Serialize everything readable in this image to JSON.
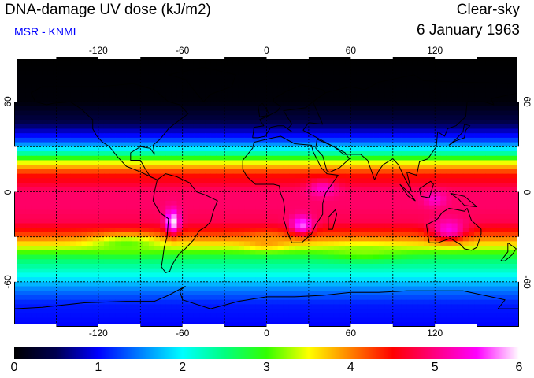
{
  "header": {
    "title": "DNA-damage UV dose (kJ/m2)",
    "source": "MSR - KNMI",
    "condition": "Clear-sky",
    "date": "6 January 1963"
  },
  "colors": {
    "source_text": "#0000ff",
    "frame": "#000000",
    "gridline": "#000000",
    "coastline": "#000000"
  },
  "map": {
    "projection": "equirectangular",
    "lon_range": [
      -180,
      180
    ],
    "lat_range": [
      -90,
      90
    ],
    "lon_ticks": [
      -120,
      -60,
      0,
      60,
      120
    ],
    "lat_ticks": [
      60,
      0,
      -60
    ],
    "lon_tick_labels": [
      "-120",
      "-60",
      "0",
      "60",
      "120"
    ],
    "lat_tick_labels": [
      "60",
      "0",
      "-60"
    ],
    "grid": true,
    "grid_style": "dotted",
    "lon_grid_step": 30,
    "lat_grid_step": 30
  },
  "colorbar": {
    "min": 0,
    "max": 6,
    "tick_labels": [
      "0",
      "1",
      "2",
      "3",
      "4",
      "5",
      "6"
    ],
    "stops": [
      {
        "v": 0.0,
        "c": "#000000"
      },
      {
        "v": 0.5,
        "c": "#000050"
      },
      {
        "v": 1.0,
        "c": "#0000ff"
      },
      {
        "v": 1.5,
        "c": "#0080ff"
      },
      {
        "v": 2.0,
        "c": "#00ffff"
      },
      {
        "v": 2.5,
        "c": "#00ff80"
      },
      {
        "v": 3.0,
        "c": "#33ff00"
      },
      {
        "v": 3.5,
        "c": "#ffff00"
      },
      {
        "v": 4.0,
        "c": "#ff8000"
      },
      {
        "v": 4.5,
        "c": "#ff0000"
      },
      {
        "v": 5.0,
        "c": "#ff0080"
      },
      {
        "v": 5.5,
        "c": "#ff00ff"
      },
      {
        "v": 6.0,
        "c": "#ffffff"
      }
    ]
  },
  "dose_field": {
    "lat_profile": [
      {
        "lat": 90,
        "v": 0.0
      },
      {
        "lat": 60,
        "v": 0.05
      },
      {
        "lat": 45,
        "v": 0.5
      },
      {
        "lat": 35,
        "v": 1.2
      },
      {
        "lat": 27,
        "v": 2.1
      },
      {
        "lat": 20,
        "v": 3.4
      },
      {
        "lat": 12,
        "v": 4.4
      },
      {
        "lat": 0,
        "v": 4.9
      },
      {
        "lat": -10,
        "v": 4.9
      },
      {
        "lat": -20,
        "v": 4.8
      },
      {
        "lat": -28,
        "v": 4.3
      },
      {
        "lat": -35,
        "v": 3.6
      },
      {
        "lat": -45,
        "v": 2.6
      },
      {
        "lat": -55,
        "v": 2.1
      },
      {
        "lat": -65,
        "v": 1.5
      },
      {
        "lat": -75,
        "v": 1.1
      },
      {
        "lat": -90,
        "v": 1.0
      }
    ],
    "hotspots": [
      {
        "lon": -67,
        "lat": -20,
        "v": 6.0,
        "rlon": 5,
        "rlat": 8
      },
      {
        "lon": 25,
        "lat": -22,
        "v": 5.7,
        "rlon": 8,
        "rlat": 6
      },
      {
        "lon": 130,
        "lat": -25,
        "v": 5.4,
        "rlon": 12,
        "rlat": 7
      },
      {
        "lon": 120,
        "lat": -5,
        "v": 5.3,
        "rlon": 8,
        "rlat": 5
      },
      {
        "lon": 40,
        "lat": 2,
        "v": 5.3,
        "rlon": 10,
        "rlat": 5
      }
    ],
    "coolspots": [
      {
        "lon": 0,
        "lat": -33,
        "v": 3.9,
        "rlon": 15,
        "rlat": 5
      },
      {
        "lon": -100,
        "lat": -35,
        "v": 3.1,
        "rlon": 25,
        "rlat": 6
      },
      {
        "lon": 70,
        "lat": -40,
        "v": 3.2,
        "rlon": 25,
        "rlat": 5
      }
    ]
  },
  "coastlines": [
    {
      "name": "north-america",
      "pts": [
        [
          -168,
          66
        ],
        [
          -160,
          70
        ],
        [
          -140,
          70
        ],
        [
          -120,
          70
        ],
        [
          -95,
          72
        ],
        [
          -80,
          68
        ],
        [
          -70,
          60
        ],
        [
          -62,
          58
        ],
        [
          -56,
          52
        ],
        [
          -66,
          45
        ],
        [
          -70,
          42
        ],
        [
          -76,
          35
        ],
        [
          -81,
          31
        ],
        [
          -80,
          25
        ],
        [
          -83,
          29
        ],
        [
          -90,
          30
        ],
        [
          -97,
          26
        ],
        [
          -97,
          21
        ],
        [
          -90,
          21
        ],
        [
          -87,
          16
        ],
        [
          -83,
          10
        ],
        [
          -78,
          8
        ],
        [
          -85,
          11
        ],
        [
          -92,
          14
        ],
        [
          -100,
          17
        ],
        [
          -106,
          23
        ],
        [
          -112,
          30
        ],
        [
          -117,
          33
        ],
        [
          -121,
          37
        ],
        [
          -124,
          42
        ],
        [
          -124,
          48
        ],
        [
          -132,
          55
        ],
        [
          -140,
          60
        ],
        [
          -152,
          59
        ],
        [
          -157,
          58
        ],
        [
          -165,
          60
        ],
        [
          -168,
          66
        ]
      ]
    },
    {
      "name": "south-america",
      "pts": [
        [
          -78,
          8
        ],
        [
          -72,
          12
        ],
        [
          -64,
          10
        ],
        [
          -55,
          6
        ],
        [
          -50,
          0
        ],
        [
          -44,
          -2
        ],
        [
          -35,
          -6
        ],
        [
          -38,
          -13
        ],
        [
          -40,
          -20
        ],
        [
          -43,
          -23
        ],
        [
          -48,
          -26
        ],
        [
          -52,
          -32
        ],
        [
          -58,
          -38
        ],
        [
          -62,
          -41
        ],
        [
          -65,
          -45
        ],
        [
          -68,
          -50
        ],
        [
          -69,
          -53
        ],
        [
          -72,
          -54
        ],
        [
          -75,
          -50
        ],
        [
          -74,
          -44
        ],
        [
          -73,
          -37
        ],
        [
          -71,
          -30
        ],
        [
          -70,
          -18
        ],
        [
          -76,
          -14
        ],
        [
          -81,
          -6
        ],
        [
          -80,
          0
        ],
        [
          -78,
          8
        ]
      ]
    },
    {
      "name": "greenland",
      "pts": [
        [
          -45,
          60
        ],
        [
          -40,
          65
        ],
        [
          -25,
          70
        ],
        [
          -22,
          78
        ],
        [
          -45,
          83
        ],
        [
          -70,
          78
        ],
        [
          -58,
          75
        ],
        [
          -52,
          68
        ],
        [
          -45,
          60
        ]
      ]
    },
    {
      "name": "europe",
      "pts": [
        [
          -10,
          36
        ],
        [
          -9,
          43
        ],
        [
          -2,
          44
        ],
        [
          -5,
          48
        ],
        [
          2,
          51
        ],
        [
          8,
          54
        ],
        [
          10,
          57
        ],
        [
          5,
          60
        ],
        [
          5,
          62
        ],
        [
          14,
          67
        ],
        [
          25,
          71
        ],
        [
          40,
          68
        ],
        [
          42,
          66
        ],
        [
          33,
          60
        ],
        [
          28,
          56
        ],
        [
          20,
          55
        ],
        [
          12,
          54
        ],
        [
          18,
          45
        ],
        [
          15,
          42
        ],
        [
          18,
          40
        ],
        [
          12,
          44
        ],
        [
          8,
          44
        ],
        [
          3,
          43
        ],
        [
          -1,
          37
        ],
        [
          -6,
          36
        ],
        [
          -10,
          36
        ]
      ]
    },
    {
      "name": "africa",
      "pts": [
        [
          -17,
          21
        ],
        [
          -17,
          15
        ],
        [
          -14,
          10
        ],
        [
          -8,
          5
        ],
        [
          -2,
          5
        ],
        [
          5,
          5
        ],
        [
          9,
          4
        ],
        [
          10,
          -1
        ],
        [
          12,
          -6
        ],
        [
          13,
          -12
        ],
        [
          12,
          -18
        ],
        [
          15,
          -27
        ],
        [
          18,
          -34
        ],
        [
          25,
          -34
        ],
        [
          32,
          -28
        ],
        [
          35,
          -22
        ],
        [
          40,
          -15
        ],
        [
          40,
          -8
        ],
        [
          42,
          -1
        ],
        [
          51,
          11
        ],
        [
          43,
          12
        ],
        [
          39,
          16
        ],
        [
          33,
          27
        ],
        [
          32,
          31
        ],
        [
          20,
          32
        ],
        [
          10,
          37
        ],
        [
          0,
          35
        ],
        [
          -9,
          33
        ],
        [
          -10,
          29
        ],
        [
          -17,
          21
        ]
      ]
    },
    {
      "name": "arabia",
      "pts": [
        [
          35,
          29
        ],
        [
          40,
          24
        ],
        [
          43,
          14
        ],
        [
          45,
          13
        ],
        [
          52,
          16
        ],
        [
          59,
          22
        ],
        [
          56,
          26
        ],
        [
          50,
          29
        ],
        [
          48,
          30
        ],
        [
          36,
          35
        ],
        [
          35,
          29
        ]
      ]
    },
    {
      "name": "asia",
      "pts": [
        [
          26,
          41
        ],
        [
          36,
          36
        ],
        [
          48,
          30
        ],
        [
          55,
          25
        ],
        [
          62,
          25
        ],
        [
          67,
          25
        ],
        [
          72,
          21
        ],
        [
          77,
          8
        ],
        [
          80,
          14
        ],
        [
          83,
          18
        ],
        [
          90,
          22
        ],
        [
          94,
          18
        ],
        [
          98,
          10
        ],
        [
          103,
          1
        ],
        [
          100,
          13
        ],
        [
          107,
          11
        ],
        [
          109,
          20
        ],
        [
          115,
          22
        ],
        [
          121,
          30
        ],
        [
          122,
          40
        ],
        [
          127,
          37
        ],
        [
          129,
          42
        ],
        [
          135,
          44
        ],
        [
          142,
          50
        ],
        [
          143,
          60
        ],
        [
          155,
          60
        ],
        [
          162,
          58
        ],
        [
          160,
          62
        ],
        [
          180,
          66
        ],
        [
          180,
          72
        ],
        [
          140,
          73
        ],
        [
          112,
          74
        ],
        [
          105,
          78
        ],
        [
          80,
          73
        ],
        [
          70,
          68
        ],
        [
          60,
          70
        ],
        [
          42,
          66
        ],
        [
          33,
          60
        ],
        [
          40,
          45
        ],
        [
          30,
          46
        ],
        [
          26,
          41
        ]
      ]
    },
    {
      "name": "madagascar",
      "pts": [
        [
          44,
          -25
        ],
        [
          47,
          -25
        ],
        [
          50,
          -15
        ],
        [
          49,
          -12
        ],
        [
          44,
          -17
        ],
        [
          44,
          -25
        ]
      ]
    },
    {
      "name": "australia",
      "pts": [
        [
          114,
          -22
        ],
        [
          116,
          -34
        ],
        [
          122,
          -34
        ],
        [
          131,
          -31
        ],
        [
          138,
          -35
        ],
        [
          141,
          -38
        ],
        [
          146,
          -39
        ],
        [
          150,
          -37
        ],
        [
          153,
          -28
        ],
        [
          153,
          -25
        ],
        [
          146,
          -19
        ],
        [
          143,
          -11
        ],
        [
          141,
          -13
        ],
        [
          136,
          -12
        ],
        [
          130,
          -11
        ],
        [
          125,
          -14
        ],
        [
          122,
          -18
        ],
        [
          114,
          -22
        ]
      ]
    },
    {
      "name": "new-zealand",
      "pts": [
        [
          172,
          -34
        ],
        [
          178,
          -38
        ],
        [
          175,
          -42
        ],
        [
          170,
          -46
        ],
        [
          167,
          -46
        ],
        [
          172,
          -40
        ],
        [
          172,
          -34
        ]
      ]
    },
    {
      "name": "borneo",
      "pts": [
        [
          109,
          2
        ],
        [
          117,
          7
        ],
        [
          119,
          5
        ],
        [
          116,
          -4
        ],
        [
          110,
          -3
        ],
        [
          109,
          2
        ]
      ]
    },
    {
      "name": "sumatra",
      "pts": [
        [
          95,
          5
        ],
        [
          103,
          -2
        ],
        [
          106,
          -6
        ],
        [
          101,
          -3
        ],
        [
          95,
          5
        ]
      ]
    },
    {
      "name": "new-guinea",
      "pts": [
        [
          131,
          -1
        ],
        [
          141,
          -3
        ],
        [
          150,
          -10
        ],
        [
          141,
          -9
        ],
        [
          137,
          -5
        ],
        [
          131,
          -1
        ]
      ]
    },
    {
      "name": "japan",
      "pts": [
        [
          130,
          31
        ],
        [
          135,
          34
        ],
        [
          141,
          36
        ],
        [
          142,
          41
        ],
        [
          145,
          44
        ],
        [
          141,
          45
        ],
        [
          140,
          40
        ],
        [
          135,
          35
        ],
        [
          130,
          31
        ]
      ]
    },
    {
      "name": "uk",
      "pts": [
        [
          -5,
          50
        ],
        [
          2,
          51
        ],
        [
          0,
          55
        ],
        [
          -3,
          59
        ],
        [
          -6,
          57
        ],
        [
          -5,
          50
        ]
      ]
    },
    {
      "name": "antarctica",
      "pts": [
        [
          -180,
          -85
        ],
        [
          -180,
          -78
        ],
        [
          -160,
          -77
        ],
        [
          -150,
          -76
        ],
        [
          -130,
          -74
        ],
        [
          -100,
          -73
        ],
        [
          -80,
          -73
        ],
        [
          -70,
          -69
        ],
        [
          -58,
          -63
        ],
        [
          -62,
          -66
        ],
        [
          -60,
          -72
        ],
        [
          -40,
          -78
        ],
        [
          -20,
          -73
        ],
        [
          0,
          -70
        ],
        [
          20,
          -70
        ],
        [
          40,
          -69
        ],
        [
          60,
          -67
        ],
        [
          80,
          -67
        ],
        [
          100,
          -66
        ],
        [
          120,
          -66
        ],
        [
          140,
          -66
        ],
        [
          160,
          -70
        ],
        [
          170,
          -72
        ],
        [
          165,
          -78
        ],
        [
          180,
          -78
        ],
        [
          180,
          -85
        ]
      ]
    }
  ]
}
